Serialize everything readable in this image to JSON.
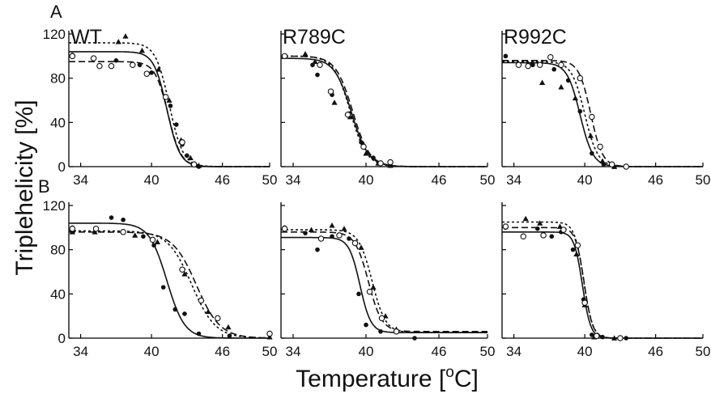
{
  "figure": {
    "ylabel": "Triplehelicity [%]",
    "xlabel": "Temperature [",
    "xlabel_sup": "o",
    "xlabel_tail": "C]",
    "row_labels": [
      "A",
      "B"
    ]
  },
  "colors": {
    "ink": "#111111",
    "axis": "#000000"
  },
  "chart_data": [
    {
      "type": "line",
      "row": "A",
      "title": "WT",
      "xlim": [
        33,
        50
      ],
      "ylim": [
        0,
        120
      ],
      "xticks": [
        34,
        40,
        46,
        50
      ],
      "yticks": [
        0,
        40,
        80,
        120
      ],
      "series": [
        {
          "style": "solid",
          "marker": "filled-circle",
          "curve": {
            "top": 104,
            "tm": 41.3,
            "width": 0.55
          },
          "points": [
            [
              33.3,
              101
            ],
            [
              37.0,
              96
            ],
            [
              39.0,
              92
            ],
            [
              40.0,
              85
            ],
            [
              41.6,
              55
            ],
            [
              42.1,
              38
            ],
            [
              42.6,
              20
            ],
            [
              43.0,
              10
            ],
            [
              43.5,
              2
            ],
            [
              44.0,
              0
            ]
          ]
        },
        {
          "style": "dotted",
          "marker": "filled-triangle",
          "curve": {
            "top": 112,
            "tm": 41.5,
            "width": 0.58
          },
          "points": [
            [
              37.2,
              113
            ],
            [
              37.8,
              118
            ],
            [
              39.2,
              105
            ],
            [
              40.6,
              88
            ],
            [
              41.5,
              60
            ],
            [
              42.5,
              24
            ],
            [
              43.3,
              8
            ],
            [
              44.0,
              1
            ]
          ]
        },
        {
          "style": "dashed",
          "marker": "open-circle",
          "curve": {
            "top": 95,
            "tm": 41.4,
            "width": 0.55
          },
          "points": [
            [
              33.3,
              100
            ],
            [
              35.1,
              98
            ],
            [
              35.6,
              91
            ],
            [
              36.6,
              91
            ],
            [
              38.4,
              92
            ],
            [
              39.6,
              84
            ],
            [
              41.2,
              63
            ],
            [
              42.6,
              22
            ],
            [
              43.6,
              2
            ]
          ]
        }
      ]
    },
    {
      "type": "line",
      "row": "A",
      "title": "R789C",
      "xlim": [
        33,
        50
      ],
      "ylim": [
        0,
        120
      ],
      "xticks": [
        34,
        40,
        46,
        50
      ],
      "yticks": [
        0,
        40,
        80,
        120
      ],
      "series": [
        {
          "style": "solid",
          "marker": "filled-circle",
          "curve": {
            "top": 98,
            "tm": 38.8,
            "width": 0.7
          },
          "points": [
            [
              33.3,
              100
            ],
            [
              35.6,
              92
            ],
            [
              36.0,
              83
            ],
            [
              37.2,
              65
            ],
            [
              38.6,
              48
            ],
            [
              39.6,
              22
            ],
            [
              40.6,
              8
            ],
            [
              41.2,
              3
            ],
            [
              42.0,
              2
            ]
          ]
        },
        {
          "style": "dotted",
          "marker": "filled-triangle",
          "curve": {
            "top": 100,
            "tm": 38.7,
            "width": 0.68
          },
          "points": [
            [
              35.0,
              102
            ],
            [
              35.8,
              95
            ],
            [
              37.4,
              58
            ],
            [
              38.7,
              45
            ],
            [
              40.0,
              12
            ],
            [
              41.0,
              3
            ],
            [
              42.0,
              1
            ]
          ]
        },
        {
          "style": "dashed",
          "marker": "open-circle",
          "curve": {
            "top": 100,
            "tm": 38.9,
            "width": 0.7
          },
          "points": [
            [
              33.3,
              100
            ],
            [
              36.2,
              92
            ],
            [
              37.1,
              68
            ],
            [
              38.5,
              47
            ],
            [
              39.8,
              18
            ],
            [
              41.2,
              3
            ],
            [
              42.0,
              4
            ]
          ]
        }
      ]
    },
    {
      "type": "line",
      "row": "A",
      "title": "R992C",
      "xlim": [
        33,
        50
      ],
      "ylim": [
        0,
        120
      ],
      "xticks": [
        34,
        40,
        46,
        50
      ],
      "yticks": [
        0,
        40,
        80,
        120
      ],
      "series": [
        {
          "style": "solid",
          "marker": "filled-circle",
          "curve": {
            "top": 94,
            "tm": 39.6,
            "width": 0.55
          },
          "points": [
            [
              33.3,
              100
            ],
            [
              35.6,
              92
            ],
            [
              37.4,
              88
            ],
            [
              38.6,
              78
            ],
            [
              39.6,
              50
            ],
            [
              40.6,
              12
            ],
            [
              41.6,
              2
            ],
            [
              42.5,
              0
            ],
            [
              43.5,
              0
            ]
          ]
        },
        {
          "style": "dotted",
          "marker": "filled-triangle",
          "curve": {
            "top": 95,
            "tm": 40.0,
            "width": 0.55
          },
          "points": [
            [
              35.5,
              93
            ],
            [
              36.4,
              76
            ],
            [
              38.0,
              72
            ],
            [
              39.2,
              62
            ],
            [
              40.5,
              28
            ],
            [
              41.5,
              5
            ],
            [
              42.5,
              0
            ]
          ]
        },
        {
          "style": "dashed",
          "marker": "open-circle",
          "curve": {
            "top": 96,
            "tm": 40.5,
            "width": 0.5
          },
          "points": [
            [
              34.4,
              92
            ],
            [
              35.2,
              91
            ],
            [
              36.2,
              92
            ],
            [
              37.1,
              99
            ],
            [
              38.0,
              92
            ],
            [
              39.6,
              80
            ],
            [
              40.6,
              45
            ],
            [
              41.3,
              18
            ],
            [
              42.3,
              2
            ],
            [
              43.5,
              0
            ]
          ]
        }
      ]
    },
    {
      "type": "line",
      "row": "B",
      "title": "",
      "xlim": [
        33,
        50
      ],
      "ylim": [
        0,
        120
      ],
      "xticks": [
        34,
        40,
        46,
        50
      ],
      "yticks": [
        0,
        40,
        80,
        120
      ],
      "series": [
        {
          "style": "solid",
          "marker": "filled-circle",
          "curve": {
            "top": 104,
            "tm": 41.3,
            "width": 0.75
          },
          "points": [
            [
              33.3,
              100
            ],
            [
              36.6,
              109
            ],
            [
              37.6,
              107
            ],
            [
              39.3,
              92
            ],
            [
              40.2,
              84
            ],
            [
              41.0,
              46
            ],
            [
              42.0,
              26
            ],
            [
              42.8,
              22
            ],
            [
              44.0,
              4
            ],
            [
              46.6,
              2
            ],
            [
              50.0,
              3
            ]
          ]
        },
        {
          "style": "dotted",
          "marker": "filled-triangle",
          "curve": {
            "top": 97,
            "tm": 43.4,
            "width": 1.0
          },
          "points": [
            [
              33.3,
              96
            ],
            [
              35.2,
              96
            ],
            [
              38.6,
              93
            ],
            [
              40.5,
              87
            ],
            [
              42.8,
              58
            ],
            [
              44.8,
              24
            ],
            [
              46.5,
              10
            ],
            [
              50.0,
              1
            ]
          ]
        },
        {
          "style": "dashed",
          "marker": "open-circle",
          "curve": {
            "top": 96,
            "tm": 43.8,
            "width": 1.0
          },
          "points": [
            [
              33.3,
              99
            ],
            [
              35.3,
              99
            ],
            [
              37.6,
              96
            ],
            [
              40.1,
              89
            ],
            [
              42.6,
              62
            ],
            [
              44.2,
              34
            ],
            [
              45.6,
              18
            ],
            [
              50.0,
              4
            ]
          ]
        }
      ]
    },
    {
      "type": "line",
      "row": "B",
      "title": "",
      "xlim": [
        33,
        50
      ],
      "ylim": [
        0,
        120
      ],
      "xticks": [
        34,
        40,
        46,
        50
      ],
      "yticks": [
        0,
        40,
        80,
        120
      ],
      "series": [
        {
          "style": "solid",
          "marker": "filled-circle",
          "curve": {
            "top": 91,
            "tm": 39.5,
            "width": 0.45,
            "base": 5
          },
          "points": [
            [
              33.3,
              100
            ],
            [
              35.0,
              95
            ],
            [
              36.0,
              80
            ],
            [
              37.2,
              92
            ],
            [
              38.6,
              90
            ],
            [
              39.4,
              40
            ],
            [
              40.0,
              12
            ],
            [
              41.2,
              6
            ],
            [
              44.0,
              0
            ]
          ]
        },
        {
          "style": "dotted",
          "marker": "filled-triangle",
          "curve": {
            "top": 98,
            "tm": 40.5,
            "width": 0.55,
            "base": 5
          },
          "points": [
            [
              35.5,
              98
            ],
            [
              37.2,
              102
            ],
            [
              38.2,
              99
            ],
            [
              39.6,
              82
            ],
            [
              40.6,
              46
            ],
            [
              41.6,
              20
            ],
            [
              42.5,
              8
            ]
          ]
        },
        {
          "style": "dashed",
          "marker": "open-circle",
          "curve": {
            "top": 96,
            "tm": 40.2,
            "width": 0.55,
            "base": 6
          },
          "points": [
            [
              33.3,
              99
            ],
            [
              36.3,
              90
            ],
            [
              37.8,
              93
            ],
            [
              39.1,
              86
            ],
            [
              40.3,
              42
            ],
            [
              41.3,
              18
            ],
            [
              42.5,
              6
            ]
          ]
        }
      ]
    },
    {
      "type": "line",
      "row": "B",
      "title": "",
      "xlim": [
        33,
        50
      ],
      "ylim": [
        0,
        120
      ],
      "xticks": [
        34,
        40,
        46,
        50
      ],
      "yticks": [
        0,
        40,
        80,
        120
      ],
      "series": [
        {
          "style": "solid",
          "marker": "filled-circle",
          "curve": {
            "top": 96,
            "tm": 39.8,
            "width": 0.35
          },
          "points": [
            [
              33.3,
              100
            ],
            [
              36.0,
              99
            ],
            [
              37.2,
              92
            ],
            [
              38.0,
              96
            ],
            [
              39.0,
              80
            ],
            [
              39.9,
              35
            ],
            [
              40.6,
              3
            ],
            [
              41.5,
              1
            ],
            [
              43.5,
              0
            ]
          ]
        },
        {
          "style": "dotted",
          "marker": "filled-triangle",
          "curve": {
            "top": 105,
            "tm": 39.9,
            "width": 0.38
          },
          "points": [
            [
              35.0,
              108
            ],
            [
              36.2,
              104
            ],
            [
              37.9,
              101
            ],
            [
              39.3,
              76
            ],
            [
              40.0,
              30
            ],
            [
              40.8,
              1
            ],
            [
              42.5,
              0
            ]
          ]
        },
        {
          "style": "dashed",
          "marker": "open-circle",
          "curve": {
            "top": 100,
            "tm": 39.95,
            "width": 0.36
          },
          "points": [
            [
              33.3,
              101
            ],
            [
              34.8,
              92
            ],
            [
              36.5,
              93
            ],
            [
              38.2,
              98
            ],
            [
              39.4,
              84
            ],
            [
              40.0,
              32
            ],
            [
              41.0,
              2
            ],
            [
              43.0,
              0
            ]
          ]
        }
      ]
    }
  ]
}
